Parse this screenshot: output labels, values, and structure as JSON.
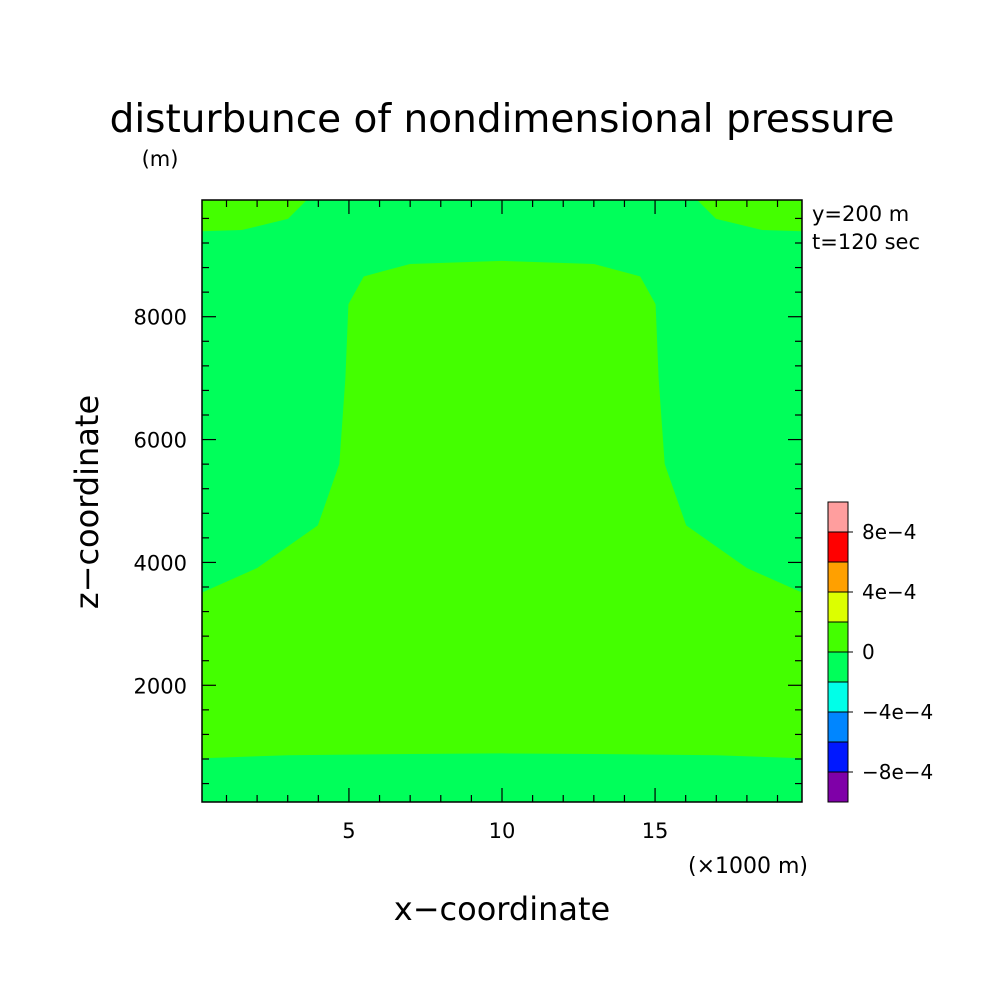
{
  "chart_data": {
    "type": "heatmap",
    "title": "disturbunce of nondimensional pressure",
    "y_unit": "(m)",
    "x_unit": "(×1000 m)",
    "xlabel": "x−coordinate",
    "ylabel": "z−coordinate",
    "annotations": [
      "y=200 m",
      "t=120 sec"
    ],
    "xlim": [
      0.2,
      19.8
    ],
    "ylim": [
      100,
      9900
    ],
    "x_ticks": [
      5,
      10,
      15
    ],
    "x_tick_labels": [
      "5",
      "10",
      "15"
    ],
    "y_ticks": [
      2000,
      4000,
      6000,
      8000
    ],
    "y_tick_labels": [
      "2000",
      "4000",
      "6000",
      "8000"
    ],
    "x_minor_step": 1,
    "y_minor_step": 400,
    "colorbar": {
      "levels": [
        -0.001,
        -0.0008,
        -0.0006,
        -0.0004,
        -0.0002,
        0,
        0.0002,
        0.0004,
        0.0006,
        0.0008,
        0.001
      ],
      "colors": [
        "#7f00a8",
        "#0018ff",
        "#0086ff",
        "#00ffe8",
        "#00ff5a",
        "#44ff00",
        "#dcff00",
        "#ffa000",
        "#ff0000",
        "#ff9e9e"
      ],
      "tick_labels": [
        "−8e−4",
        "−4e−4",
        "0",
        "4e−4",
        "8e−4"
      ],
      "tick_values": [
        -0.0008,
        -0.0004,
        0,
        0.0004,
        0.0008
      ]
    },
    "regions": [
      {
        "range": [
          -0.0002,
          0
        ],
        "color": "#00ff5a",
        "description": "background field"
      },
      {
        "range": [
          0,
          0.0002
        ],
        "color": "#44ff00",
        "description": "central bell region",
        "outline": [
          [
            0.2,
            820
          ],
          [
            3,
            870
          ],
          [
            7,
            890
          ],
          [
            10,
            900
          ],
          [
            13,
            890
          ],
          [
            17,
            870
          ],
          [
            19.8,
            820
          ],
          [
            19.8,
            3500
          ],
          [
            18,
            3900
          ],
          [
            16,
            4600
          ],
          [
            15.3,
            5600
          ],
          [
            15.1,
            7000
          ],
          [
            15,
            8200
          ],
          [
            14.5,
            8650
          ],
          [
            13,
            8850
          ],
          [
            10,
            8900
          ],
          [
            7,
            8850
          ],
          [
            5.5,
            8650
          ],
          [
            5,
            8200
          ],
          [
            4.9,
            7000
          ],
          [
            4.7,
            5600
          ],
          [
            4,
            4600
          ],
          [
            2,
            3900
          ],
          [
            0.2,
            3500
          ]
        ]
      },
      {
        "range": [
          0,
          0.0002
        ],
        "color": "#44ff00",
        "description": "upper-left corner patch",
        "outline": [
          [
            0.2,
            9900
          ],
          [
            3.6,
            9900
          ],
          [
            3,
            9600
          ],
          [
            1.5,
            9420
          ],
          [
            0.2,
            9400
          ]
        ]
      },
      {
        "range": [
          0,
          0.0002
        ],
        "color": "#44ff00",
        "description": "upper-right corner patch",
        "outline": [
          [
            19.8,
            9900
          ],
          [
            16.4,
            9900
          ],
          [
            17,
            9600
          ],
          [
            18.5,
            9420
          ],
          [
            19.8,
            9400
          ]
        ]
      }
    ]
  }
}
